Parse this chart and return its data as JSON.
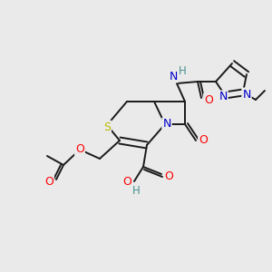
{
  "bg_color": "#eaeaea",
  "bond_color": "#1a1a1a",
  "atom_colors": {
    "O": "#ff0000",
    "N": "#0000cc",
    "S": "#b8b800",
    "H": "#4a9090",
    "C": "#1a1a1a"
  },
  "figsize": [
    3.0,
    3.0
  ],
  "dpi": 100
}
